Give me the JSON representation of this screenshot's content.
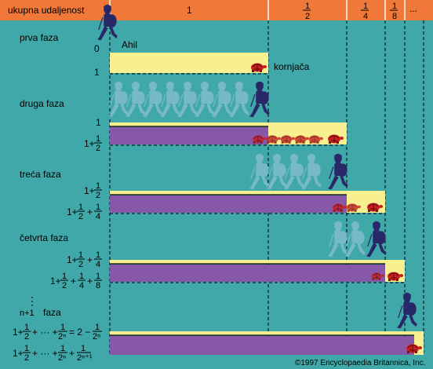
{
  "header": {
    "label": "ukupna udaljenost",
    "col1": "1",
    "col_half": {
      "num": "1",
      "den": "2"
    },
    "col_quarter": {
      "num": "1",
      "den": "4"
    },
    "col_eighth": {
      "num": "1",
      "den": "8"
    },
    "col_rest": "..."
  },
  "phases": {
    "p1": "prva faza",
    "p2": "druga faza",
    "p3": "treća faza",
    "p4": "četvrta faza",
    "pn_n": "n+1",
    "pn_word": "faza",
    "dots": "⋮"
  },
  "labels": {
    "ahil": "Ahil",
    "kornjaca": "kornjača",
    "zero": "0",
    "one": "1",
    "one_b": "1",
    "one_plus": "1+",
    "equals_two_minus": "= 2 −",
    "plus_dots_plus": "+ ··· +",
    "frac_1_2": {
      "num": "1",
      "den": "2"
    },
    "frac_1_4": {
      "num": "1",
      "den": "4"
    },
    "frac_1_8": {
      "num": "1",
      "den": "8"
    },
    "frac_1_2n": {
      "num": "1",
      "den": "2ⁿ"
    },
    "frac_1_2n1": {
      "num": "1",
      "den": "2ⁿ⁺¹"
    }
  },
  "copyright": "©1997 Encyclopaedia Britannica, Inc.",
  "colors": {
    "background": "#40a8a8",
    "header": "#f07838",
    "yellow_bar": "#f8f090",
    "purple_bar": "#8858a8",
    "turtle": "#c82020",
    "achilles": "#282868"
  }
}
